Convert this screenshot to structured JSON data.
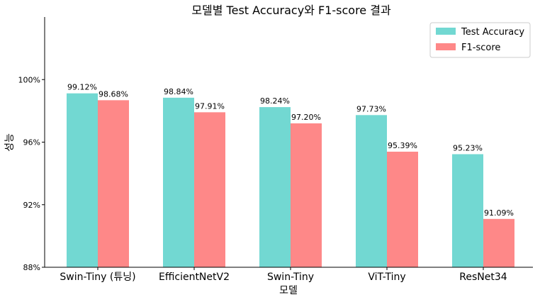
{
  "chart_data": {
    "type": "bar",
    "title": "모델별 Test Accuracy와 F1-score 결과",
    "xlabel": "모델",
    "ylabel": "성능",
    "categories": [
      "Swin-Tiny (튜닝)",
      "EfficientNetV2",
      "Swin-Tiny",
      "ViT-Tiny",
      "ResNet34"
    ],
    "series": [
      {
        "name": "Test Accuracy",
        "color": "#72d8d2",
        "values": [
          99.12,
          98.84,
          98.24,
          97.73,
          95.23
        ],
        "labels": [
          "99.12%",
          "98.84%",
          "98.24%",
          "97.73%",
          "95.23%"
        ]
      },
      {
        "name": "F1-score",
        "color": "#fe8888",
        "values": [
          98.68,
          97.91,
          97.2,
          95.39,
          91.09
        ],
        "labels": [
          "98.68%",
          "97.91%",
          "97.20%",
          "95.39%",
          "91.09%"
        ]
      }
    ],
    "ylim": [
      88,
      104
    ],
    "yticks": [
      88,
      92,
      96,
      100
    ],
    "ytick_labels": [
      "88%",
      "92%",
      "96%",
      "100%"
    ],
    "grid": false,
    "legend_position": "top-right"
  }
}
